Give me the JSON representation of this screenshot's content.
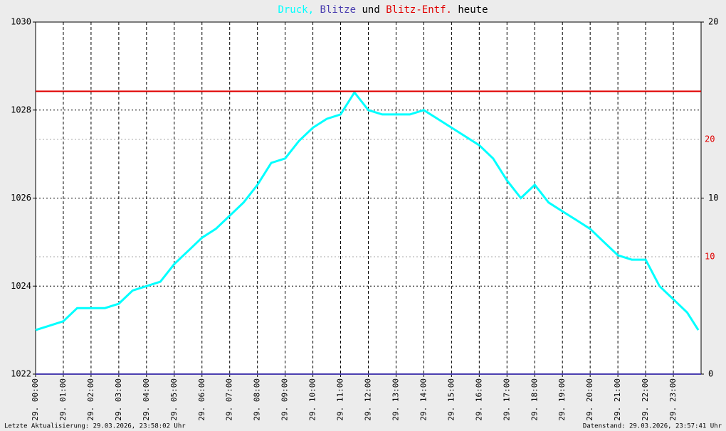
{
  "chart_data": {
    "type": "line",
    "title_words": [
      "und",
      "heute"
    ],
    "xlim": [
      0,
      24
    ],
    "xticks": [
      {
        "value": 0,
        "label": "29. 00:00"
      },
      {
        "value": 1,
        "label": "29. 01:00"
      },
      {
        "value": 2,
        "label": "29. 02:00"
      },
      {
        "value": 3,
        "label": "29. 03:00"
      },
      {
        "value": 4,
        "label": "29. 04:00"
      },
      {
        "value": 5,
        "label": "29. 05:00"
      },
      {
        "value": 6,
        "label": "29. 06:00"
      },
      {
        "value": 7,
        "label": "29. 07:00"
      },
      {
        "value": 8,
        "label": "29. 08:00"
      },
      {
        "value": 9,
        "label": "29. 09:00"
      },
      {
        "value": 10,
        "label": "29. 10:00"
      },
      {
        "value": 11,
        "label": "29. 11:00"
      },
      {
        "value": 12,
        "label": "29. 12:00"
      },
      {
        "value": 13,
        "label": "29. 13:00"
      },
      {
        "value": 14,
        "label": "29. 14:00"
      },
      {
        "value": 15,
        "label": "29. 15:00"
      },
      {
        "value": 16,
        "label": "29. 16:00"
      },
      {
        "value": 17,
        "label": "29. 17:00"
      },
      {
        "value": 18,
        "label": "29. 18:00"
      },
      {
        "value": 19,
        "label": "29. 19:00"
      },
      {
        "value": 20,
        "label": "29. 20:00"
      },
      {
        "value": 21,
        "label": "29. 21:00"
      },
      {
        "value": 22,
        "label": "29. 22:00"
      },
      {
        "value": 23,
        "label": "29. 23:00"
      }
    ],
    "ylim": [
      1022,
      1030
    ],
    "yticks": [
      1022,
      1024,
      1026,
      1028,
      1030
    ],
    "y2lim": [
      0,
      20
    ],
    "y2ticks": [
      0,
      10,
      20
    ],
    "y3lim": [
      0,
      30
    ],
    "y3ticks": [
      10,
      20
    ],
    "grid": true,
    "series": [
      {
        "name": "Druck,",
        "color": "#00ffff",
        "axis": "y",
        "x": [
          0,
          0.5,
          1,
          1.5,
          2,
          2.5,
          3,
          3.5,
          4,
          4.5,
          5,
          5.5,
          6,
          6.5,
          7,
          7.5,
          8,
          8.5,
          9,
          9.5,
          10,
          10.5,
          11,
          11.5,
          12,
          12.5,
          13,
          13.5,
          14,
          14.5,
          15,
          15.5,
          16,
          16.5,
          17,
          17.5,
          18,
          18.5,
          19,
          19.5,
          20,
          20.5,
          21,
          21.5,
          22,
          22.5,
          23,
          23.5,
          23.9
        ],
        "values": [
          1023.0,
          1023.1,
          1023.2,
          1023.5,
          1023.5,
          1023.5,
          1023.6,
          1023.9,
          1024.0,
          1024.1,
          1024.5,
          1024.8,
          1025.1,
          1025.3,
          1025.6,
          1025.9,
          1026.3,
          1026.8,
          1026.9,
          1027.3,
          1027.6,
          1027.8,
          1027.9,
          1028.4,
          1028.0,
          1027.9,
          1027.9,
          1027.9,
          1028.0,
          1027.8,
          1027.6,
          1027.4,
          1027.2,
          1026.9,
          1026.4,
          1026.0,
          1026.3,
          1025.9,
          1025.7,
          1025.5,
          1025.3,
          1025.0,
          1024.7,
          1024.6,
          1024.6,
          1024.0,
          1023.7,
          1023.4,
          1023.0
        ]
      },
      {
        "name": "Blitze",
        "color": "#4b3fb0",
        "axis": "y2",
        "x": [
          0,
          24
        ],
        "values": [
          0,
          0
        ]
      },
      {
        "name": "Blitz-Entf.",
        "color": "#e00000",
        "axis": "y3",
        "x": [
          0,
          24
        ],
        "values": [
          24.1,
          24.1
        ]
      }
    ],
    "footer_left": "Letzte Aktualisierung: 29.03.2026, 23:58:02 Uhr",
    "footer_right": "Datenstand: 29.03.2026, 23:57:41 Uhr"
  }
}
